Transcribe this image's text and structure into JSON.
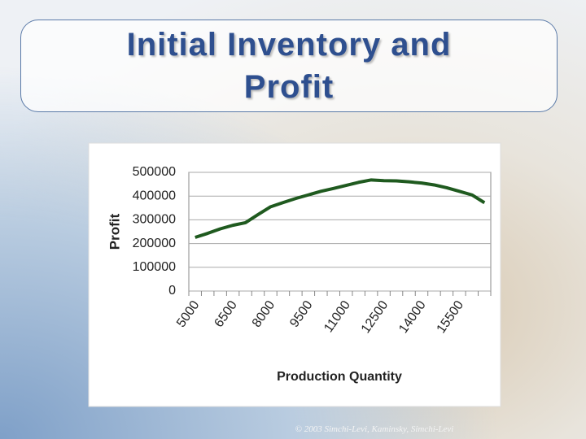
{
  "title": "Initial Inventory and Profit",
  "footer": "© 2003 Simchi-Levi, Kaminsky, Simchi-Levi",
  "chart_data": {
    "type": "line",
    "categories": [
      5000,
      null,
      null,
      6500,
      null,
      null,
      8000,
      null,
      null,
      9500,
      null,
      null,
      11000,
      null,
      null,
      12500,
      null,
      null,
      14000,
      null,
      null,
      15500,
      null,
      null
    ],
    "series": [
      {
        "name": "Profit",
        "color": "#1f5a1f",
        "values": [
          226000,
          243000,
          262000,
          277000,
          288000,
          322000,
          355000,
          373000,
          390000,
          405000,
          420000,
          432000,
          445000,
          458000,
          468000,
          465000,
          464000,
          460000,
          455000,
          447000,
          435000,
          420000,
          405000,
          372000
        ]
      }
    ],
    "y_label": "Profit",
    "x_label": "Production Quantity",
    "ylim": [
      0,
      500000
    ],
    "yticks": [
      0,
      100000,
      200000,
      300000,
      400000,
      500000
    ],
    "grid": true
  }
}
